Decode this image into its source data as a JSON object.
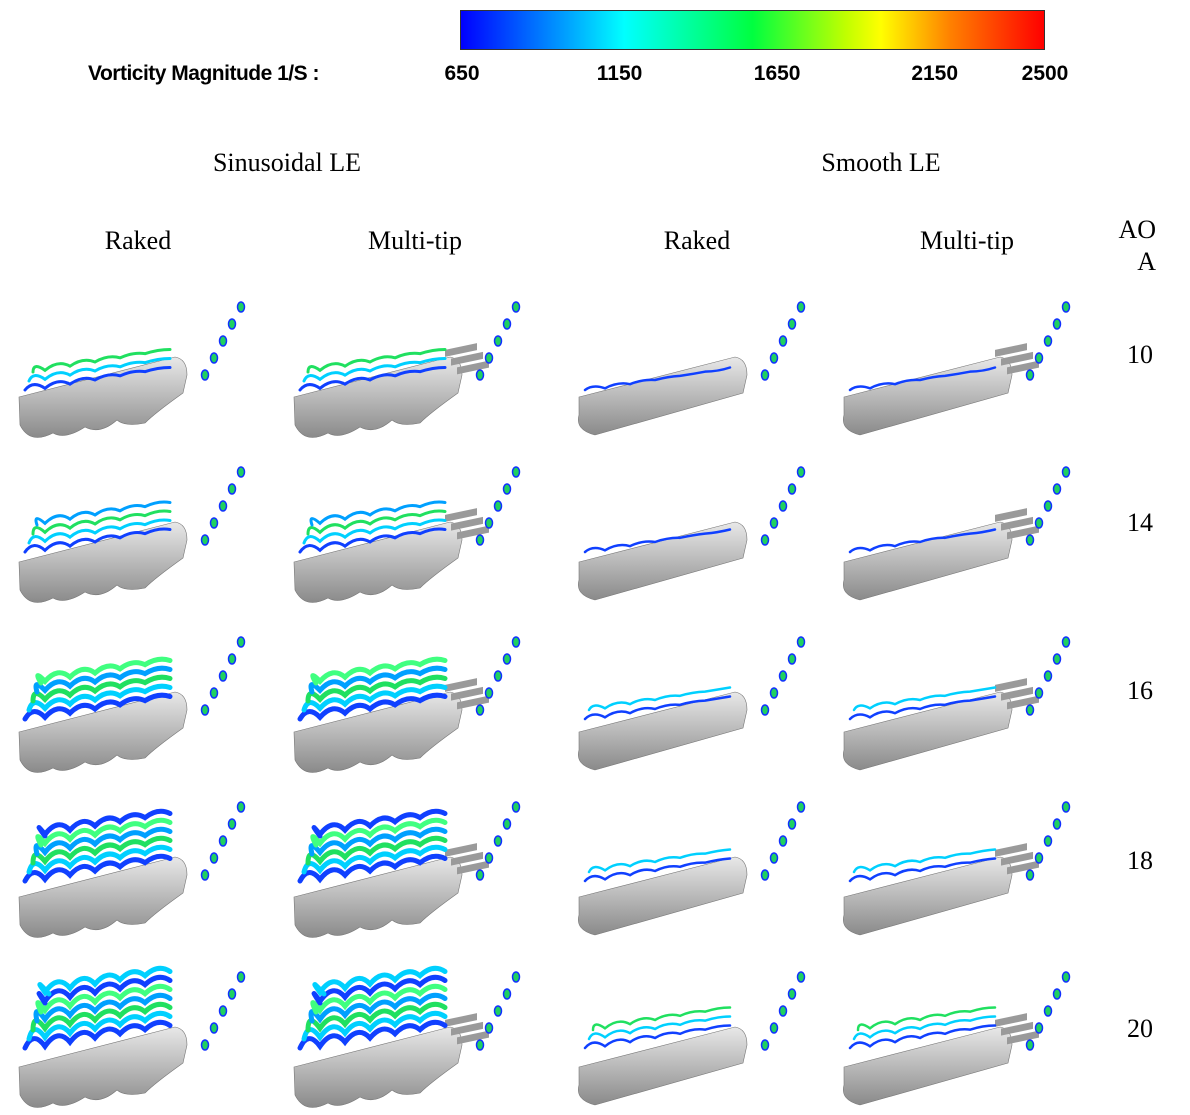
{
  "colorbar": {
    "label": "Vorticity Magnitude 1/S :",
    "ticks": [
      650,
      1150,
      1650,
      2150,
      2500
    ]
  },
  "groups": [
    "Sinusoidal LE",
    "Smooth LE"
  ],
  "columns": [
    "Raked",
    "Multi-tip",
    "Raked",
    "Multi-tip"
  ],
  "row_header": "AOA",
  "rows": [
    10,
    14,
    16,
    18,
    20
  ]
}
